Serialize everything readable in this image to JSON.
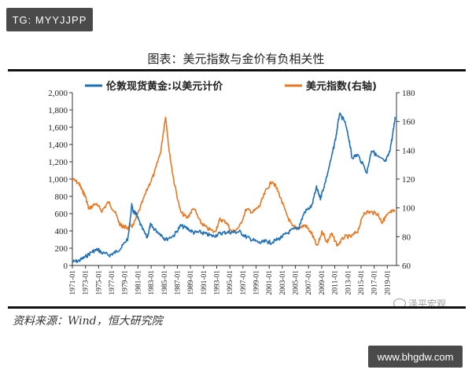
{
  "watermark_top": "TG: MYYJJPP",
  "watermark_bottom": "www.bhgdw.com",
  "wechat_mark": "泽平宏观",
  "source": "资料来源：Wind，恒大研究院",
  "colors": {
    "gold": "#1f6fb8",
    "usd": "#e87722",
    "axis": "#333333"
  },
  "chart_data": {
    "type": "line",
    "title": "图表：美元指数与金价有负相关性",
    "legend_position": "top",
    "grid": false,
    "x_tick_labels": [
      "1971-01",
      "1973-01",
      "1975-01",
      "1977-01",
      "1979-01",
      "1981-01",
      "1983-01",
      "1985-01",
      "1987-01",
      "1989-01",
      "1991-01",
      "1993-01",
      "1995-01",
      "1997-01",
      "1999-01",
      "2001-01",
      "2003-01",
      "2005-01",
      "2007-01",
      "2009-01",
      "2011-01",
      "2013-01",
      "2015-01",
      "2017-01",
      "2019-01"
    ],
    "xlim": [
      1971,
      2020.4
    ],
    "y_left": {
      "lim": [
        0,
        2000
      ],
      "ticks": [
        "0",
        "200",
        "400",
        "600",
        "800",
        "1,000",
        "1,200",
        "1,400",
        "1,600",
        "1,800",
        "2,000"
      ]
    },
    "y_right": {
      "lim": [
        60,
        180
      ],
      "ticks": [
        "60",
        "80",
        "100",
        "120",
        "140",
        "160",
        "180"
      ]
    },
    "series": [
      {
        "name": "伦敦现货黄金:以美元计价",
        "axis": "left",
        "x": [
          1971,
          1972,
          1973,
          1974,
          1974.9,
          1975.5,
          1976.7,
          1977.5,
          1978.5,
          1979.5,
          1980.05,
          1980.3,
          1980.7,
          1981.5,
          1982.4,
          1982.9,
          1983.5,
          1984.5,
          1985.2,
          1986.5,
          1987.5,
          1988.5,
          1989.5,
          1990.5,
          1991.5,
          1992.5,
          1993.5,
          1994.5,
          1995.5,
          1996.5,
          1997.5,
          1998.5,
          1999.6,
          2000.5,
          2001.3,
          2002.5,
          2003.5,
          2004.5,
          2005.5,
          2006.4,
          2007.5,
          2008.2,
          2008.8,
          2009.5,
          2010.5,
          2011.2,
          2011.7,
          2012.5,
          2013.2,
          2013.6,
          2014.5,
          2015.9,
          2016.6,
          2017.5,
          2018.7,
          2019.3,
          2019.8,
          2020.2
        ],
        "y": [
          40,
          55,
          100,
          160,
          185,
          145,
          120,
          150,
          210,
          320,
          700,
          620,
          600,
          450,
          320,
          470,
          420,
          360,
          300,
          350,
          460,
          430,
          380,
          385,
          360,
          340,
          370,
          385,
          385,
          390,
          330,
          295,
          260,
          280,
          265,
          310,
          360,
          410,
          440,
          620,
          690,
          900,
          780,
          950,
          1250,
          1500,
          1750,
          1670,
          1450,
          1250,
          1280,
          1080,
          1340,
          1260,
          1200,
          1300,
          1500,
          1720
        ]
      },
      {
        "name": "美元指数(右轴)",
        "axis": "right",
        "x": [
          1971,
          1972,
          1972.5,
          1973,
          1973.5,
          1974.5,
          1975.5,
          1976.5,
          1977.5,
          1978.3,
          1978.8,
          1979.5,
          1980.3,
          1981.5,
          1982.5,
          1983.5,
          1984.5,
          1985.2,
          1985.8,
          1986.5,
          1987.5,
          1988.5,
          1989.5,
          1990.5,
          1991.5,
          1992.7,
          1993.5,
          1994.5,
          1995.3,
          1996.5,
          1997.5,
          1998.5,
          1999.5,
          2000.5,
          2001.5,
          2002.5,
          2003.5,
          2004.5,
          2005.5,
          2006.5,
          2007.5,
          2008.3,
          2009.1,
          2009.8,
          2010.5,
          2011.4,
          2012.5,
          2013.5,
          2014.5,
          2015.5,
          2016.5,
          2017.5,
          2018.2,
          2018.8,
          2019.5,
          2020.2
        ],
        "y": [
          120,
          117,
          112,
          108,
          99,
          103,
          98,
          104,
          97,
          88,
          87,
          86,
          88,
          102,
          114,
          124,
          140,
          164,
          138,
          118,
          97,
          93,
          100,
          90,
          86,
          83,
          92,
          90,
          83,
          87,
          99,
          97,
          101,
          112,
          119,
          110,
          97,
          87,
          86,
          88,
          82,
          73,
          84,
          76,
          82,
          74,
          80,
          80,
          84,
          97,
          97,
          96,
          90,
          94,
          97,
          98
        ]
      }
    ]
  }
}
